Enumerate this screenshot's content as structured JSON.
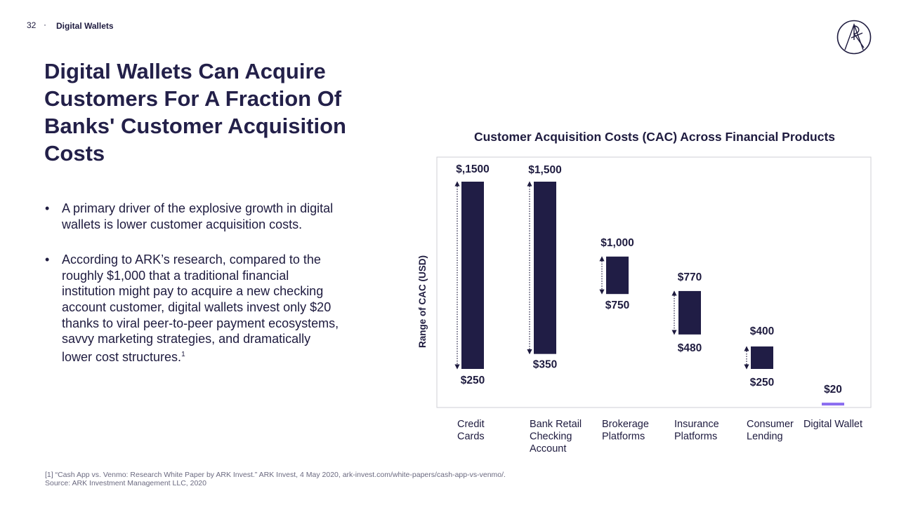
{
  "header": {
    "page_number": "32",
    "separator": "·",
    "section": "Digital Wallets"
  },
  "logo": {
    "icon": "ark-logo-icon",
    "letters": "ARK"
  },
  "title": "Digital Wallets Can Acquire Customers For A Fraction Of Banks' Customer Acquisition Costs",
  "bullets": [
    {
      "marker": "•",
      "text": "A primary driver of the explosive growth in digital wallets is lower customer acquisition costs."
    },
    {
      "marker": "•",
      "text": "According to ARK’s research, compared to the roughly $1,000 that a traditional financial institution might pay to acquire a new checking account customer, digital wallets invest only $20 thanks to viral peer-to-peer payment ecosystems, savvy marketing strategies, and dramatically lower cost structures.",
      "footnote_ref": "1"
    }
  ],
  "chart_data": {
    "type": "bar",
    "subtype": "floating-range",
    "title": "Customer Acquisition Costs (CAC) Across Financial Products",
    "ylabel": "Range of CAC (USD)",
    "xlabel": "",
    "ylim": [
      0,
      1600
    ],
    "grid": false,
    "categories": [
      {
        "lines": [
          "Credit",
          "Cards"
        ],
        "low": 250,
        "high": 1500,
        "low_label": "$250",
        "high_label": "$,1500"
      },
      {
        "lines": [
          "Bank Retail",
          "Checking",
          "Account"
        ],
        "low": 350,
        "high": 1500,
        "low_label": "$350",
        "high_label": "$1,500"
      },
      {
        "lines": [
          "Brokerage",
          "Platforms"
        ],
        "low": 750,
        "high": 1000,
        "low_label": "$750",
        "high_label": "$1,000"
      },
      {
        "lines": [
          "Insurance",
          "Platforms"
        ],
        "low": 480,
        "high": 770,
        "low_label": "$480",
        "high_label": "$770"
      },
      {
        "lines": [
          "Consumer",
          "Lending"
        ],
        "low": 250,
        "high": 400,
        "low_label": "$250",
        "high_label": "$400"
      },
      {
        "lines": [
          "Digital Wallet"
        ],
        "low": 20,
        "high": 20,
        "low_label": "",
        "high_label": "$20"
      }
    ],
    "colors": {
      "bar": "#201d45",
      "highlight": "#8a6cf0",
      "arrow": "#1e1b3f",
      "frame": "#cfcfd6"
    }
  },
  "footnotes": [
    "[1] “Cash App vs. Venmo: Research White Paper by ARK Invest.” ARK Invest, 4 May 2020, ark-invest.com/white-papers/cash-app-vs-venmo/.",
    "Source: ARK Investment Management LLC, 2020"
  ]
}
